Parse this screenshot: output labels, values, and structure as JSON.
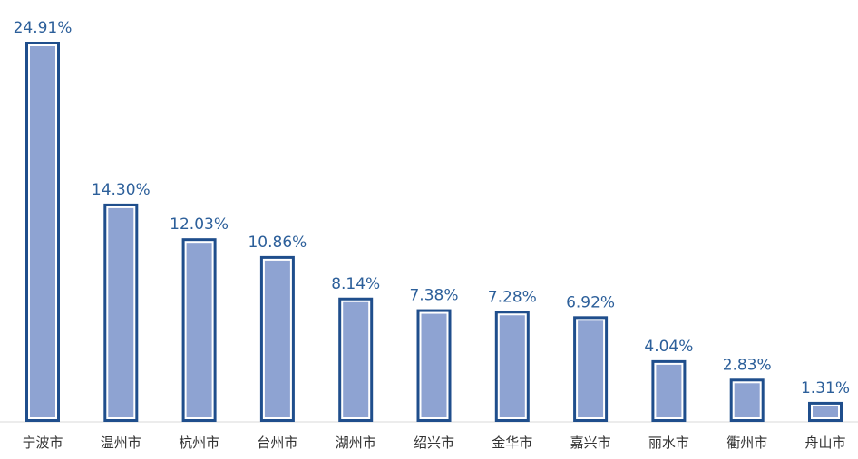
{
  "chart_data": {
    "type": "bar",
    "title": "",
    "xlabel": "",
    "ylabel": "",
    "categories": [
      "宁波市",
      "温州市",
      "杭州市",
      "台州市",
      "湖州市",
      "绍兴市",
      "金华市",
      "嘉兴市",
      "丽水市",
      "衢州市",
      "舟山市"
    ],
    "values": [
      24.91,
      14.3,
      12.03,
      10.86,
      8.14,
      7.38,
      7.28,
      6.92,
      4.04,
      2.83,
      1.31
    ],
    "value_labels": [
      "24.91%",
      "14.30%",
      "12.03%",
      "10.86%",
      "8.14%",
      "7.38%",
      "7.28%",
      "6.92%",
      "4.04%",
      "2.83%",
      "1.31%"
    ],
    "ylim": [
      0,
      24.91
    ],
    "grid": false,
    "legend": "none",
    "colors": {
      "bar_fill": "#8ea3d2",
      "bar_border": "#1f4e8c",
      "label": "#2c5f9a"
    }
  }
}
